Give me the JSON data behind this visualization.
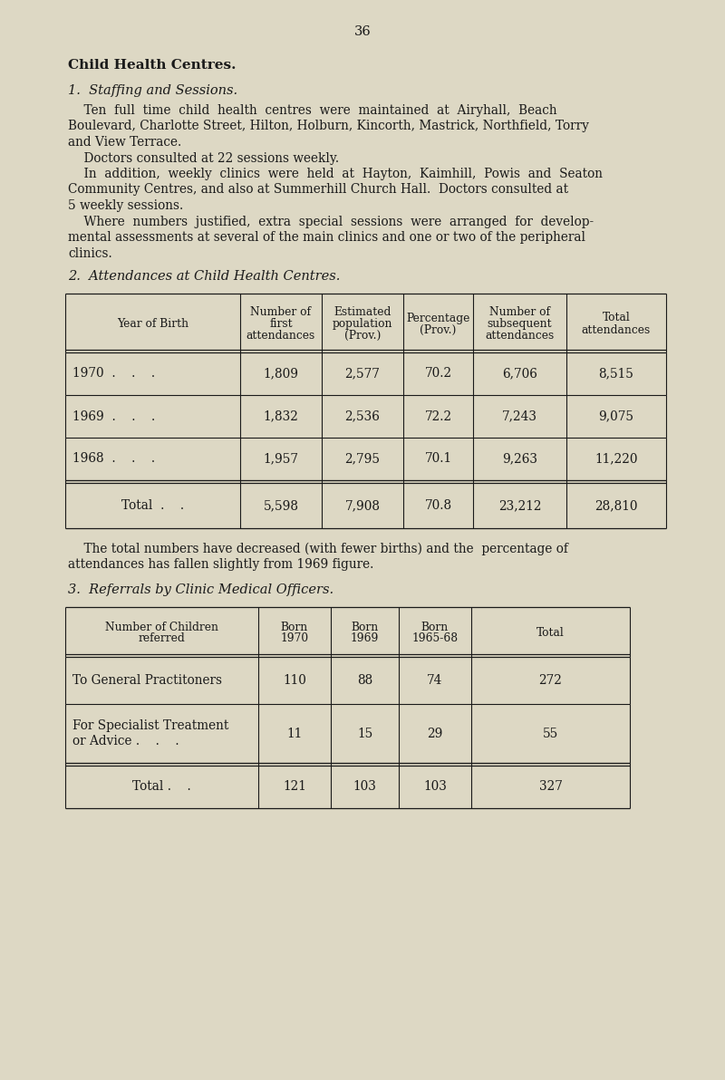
{
  "page_number": "36",
  "bg_color": "#ddd8c4",
  "text_color": "#1a1a1a",
  "title": "Child Health Centres.",
  "section1_heading": "1.  Staffing and Sessions.",
  "section1_lines": [
    "    Ten  full  time  child  health  centres  were  maintained  at  Airyhall,  Beach",
    "Boulevard, Charlotte Street, Hilton, Holburn, Kincorth, Mastrick, Northfield, Torry",
    "and View Terrace.",
    "    Doctors consulted at 22 sessions weekly.",
    "    In  addition,  weekly  clinics  were  held  at  Hayton,  Kaimhill,  Powis  and  Seaton",
    "Community Centres, and also at Summerhill Church Hall.  Doctors consulted at",
    "5 weekly sessions.",
    "    Where  numbers  justified,  extra  special  sessions  were  arranged  for  develop-",
    "mental assessments at several of the main clinics and one or two of the peripheral",
    "clinics."
  ],
  "section2_heading": "2.  Attendances at Child Health Centres.",
  "table1_col_headers": [
    "Year of Birth",
    "Number of\nfirst\nattendances",
    "Estimated\npopulation\n(Prov.)",
    "Percentage\n(Prov.)",
    "Number of\nsubsequent\nattendances",
    "Total\nattendances"
  ],
  "table1_rows": [
    [
      "1970  .    .    .",
      "1,809",
      "2,577",
      "70.2",
      "6,706",
      "8,515"
    ],
    [
      "1969  .    .    .",
      "1,832",
      "2,536",
      "72.2",
      "7,243",
      "9,075"
    ],
    [
      "1968  .    .    .",
      "1,957",
      "2,795",
      "70.1",
      "9,263",
      "11,220"
    ]
  ],
  "table1_total_row": [
    "Total  .    .",
    "5,598",
    "7,908",
    "70.8",
    "23,212",
    "28,810"
  ],
  "section2_para_lines": [
    "    The total numbers have decreased (with fewer births) and the  percentage of",
    "attendances has fallen slightly from 1969 figure."
  ],
  "section3_heading": "3.  Referrals by Clinic Medical Officers.",
  "table2_col_headers": [
    "Number of Children\nreferred",
    "Born\n1970",
    "Born\n1969",
    "Born\n1965-68",
    "Total"
  ],
  "table2_row1_label": "To General Practitoners",
  "table2_row1_label2": "",
  "table2_row2_label1": "For Specialist Treatment",
  "table2_row2_label2": "or Advice .    .    .",
  "table2_rows": [
    [
      "110",
      "88",
      "74",
      "272"
    ],
    [
      "11",
      "15",
      "29",
      "55"
    ]
  ],
  "table2_total_row": [
    "Total .    .",
    "121",
    "103",
    "103",
    "327"
  ]
}
